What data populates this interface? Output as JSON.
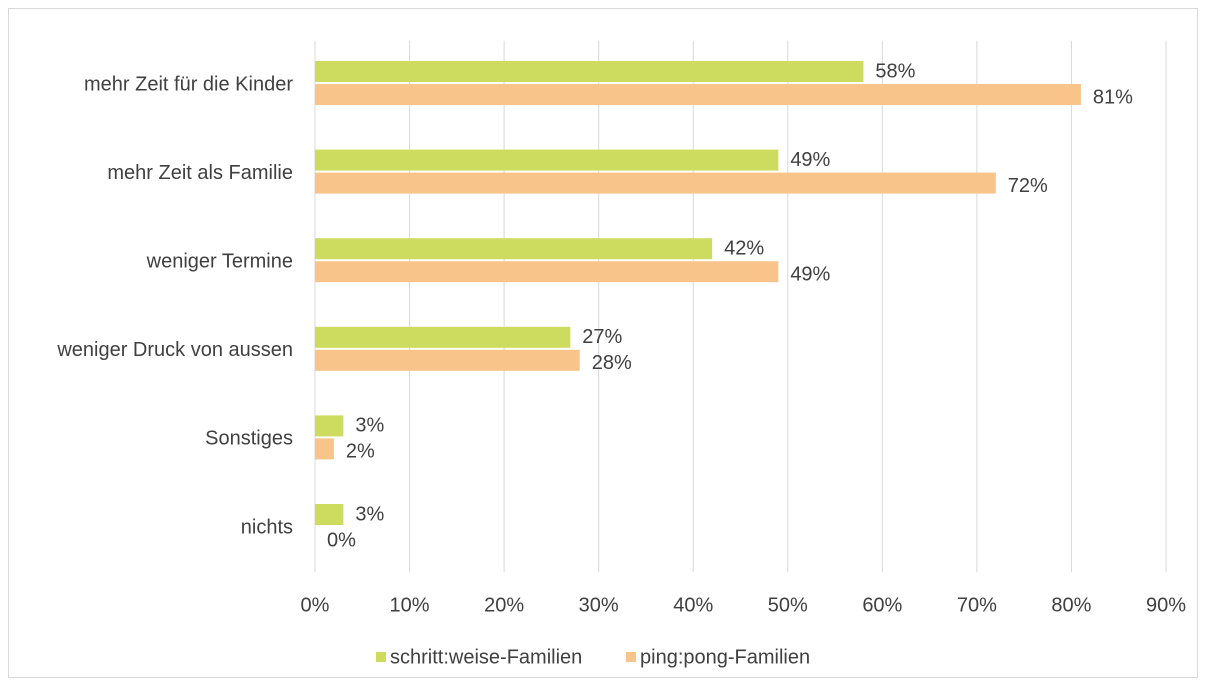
{
  "chart_data": {
    "type": "hbar",
    "categories": [
      "mehr Zeit für die Kinder",
      "mehr Zeit als Familie",
      "weniger Termine",
      "weniger Druck von aussen",
      "Sonstiges",
      "nichts"
    ],
    "series": [
      {
        "name": "schritt:weise-Familien",
        "color": "#cddc5f",
        "values": [
          58,
          49,
          42,
          27,
          3,
          3
        ],
        "value_labels": [
          "58%",
          "49%",
          "42%",
          "27%",
          "3%",
          "3%"
        ]
      },
      {
        "name": "ping:pong-Familien",
        "color": "#f8c48a",
        "values": [
          81,
          72,
          49,
          28,
          2,
          0
        ],
        "value_labels": [
          "81%",
          "72%",
          "49%",
          "28%",
          "2%",
          "0%"
        ]
      }
    ],
    "xlim": [
      0,
      90
    ],
    "xticks": [
      {
        "value": 0,
        "label": "0%"
      },
      {
        "value": 10,
        "label": "10%"
      },
      {
        "value": 20,
        "label": "20%"
      },
      {
        "value": 30,
        "label": "30%"
      },
      {
        "value": 40,
        "label": "40%"
      },
      {
        "value": 50,
        "label": "50%"
      },
      {
        "value": 60,
        "label": "60%"
      },
      {
        "value": 70,
        "label": "70%"
      },
      {
        "value": 80,
        "label": "80%"
      },
      {
        "value": 90,
        "label": "90%"
      }
    ],
    "grid": true,
    "legend": "bottom"
  }
}
